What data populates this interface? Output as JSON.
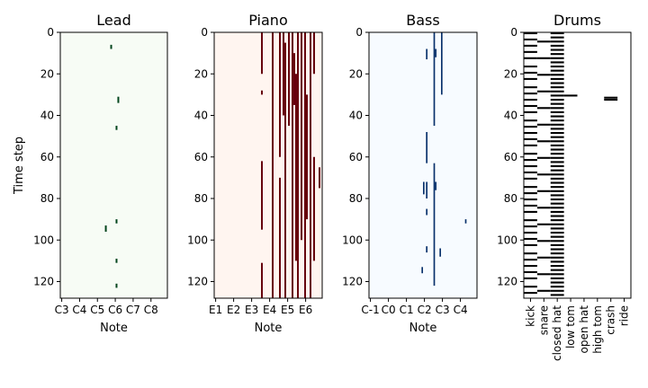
{
  "chart_data": [
    {
      "type": "heatmap",
      "title": "Lead",
      "ylabel": "Time step",
      "xlabel": "Note",
      "ylim": [
        0,
        128
      ],
      "y_ticks": [
        0,
        20,
        40,
        60,
        80,
        100,
        120
      ],
      "x_ticks": [
        "C3",
        "C4",
        "C5",
        "C6",
        "C7",
        "C8"
      ],
      "x_range": [
        48,
        108
      ],
      "background": "#f7fcf5",
      "note_color": "#00441b",
      "notes": [
        {
          "pitch": 76,
          "start": 6,
          "end": 8
        },
        {
          "pitch": 80,
          "start": 31,
          "end": 34
        },
        {
          "pitch": 79,
          "start": 45,
          "end": 47
        },
        {
          "pitch": 79,
          "start": 90,
          "end": 92
        },
        {
          "pitch": 73,
          "start": 93,
          "end": 96
        },
        {
          "pitch": 79,
          "start": 109,
          "end": 111
        },
        {
          "pitch": 79,
          "start": 121,
          "end": 123
        }
      ]
    },
    {
      "type": "heatmap",
      "title": "Piano",
      "ylabel": "",
      "xlabel": "Note",
      "ylim": [
        0,
        128
      ],
      "y_ticks": [
        0,
        20,
        40,
        60,
        80,
        100,
        120
      ],
      "x_ticks": [
        "E1",
        "E2",
        "E3",
        "E4",
        "E5",
        "E6"
      ],
      "x_range": [
        28,
        88
      ],
      "background": "#fff5f0",
      "note_color": "#67000d",
      "notes": [
        {
          "pitch": 54,
          "start": 0,
          "end": 20
        },
        {
          "pitch": 54,
          "start": 28,
          "end": 30
        },
        {
          "pitch": 54,
          "start": 62,
          "end": 95
        },
        {
          "pitch": 54,
          "start": 111,
          "end": 128
        },
        {
          "pitch": 60,
          "start": 0,
          "end": 128
        },
        {
          "pitch": 64,
          "start": 0,
          "end": 60
        },
        {
          "pitch": 64,
          "start": 70,
          "end": 128
        },
        {
          "pitch": 66,
          "start": 0,
          "end": 40
        },
        {
          "pitch": 67,
          "start": 5,
          "end": 128
        },
        {
          "pitch": 69,
          "start": 0,
          "end": 45
        },
        {
          "pitch": 71,
          "start": 0,
          "end": 128
        },
        {
          "pitch": 72,
          "start": 10,
          "end": 35
        },
        {
          "pitch": 73,
          "start": 20,
          "end": 110
        },
        {
          "pitch": 74,
          "start": 0,
          "end": 128
        },
        {
          "pitch": 76,
          "start": 0,
          "end": 100
        },
        {
          "pitch": 78,
          "start": 0,
          "end": 128
        },
        {
          "pitch": 79,
          "start": 30,
          "end": 90
        },
        {
          "pitch": 81,
          "start": 0,
          "end": 128
        },
        {
          "pitch": 83,
          "start": 0,
          "end": 20
        },
        {
          "pitch": 83,
          "start": 60,
          "end": 110
        },
        {
          "pitch": 86,
          "start": 65,
          "end": 75
        }
      ]
    },
    {
      "type": "heatmap",
      "title": "Bass",
      "ylabel": "",
      "xlabel": "Note",
      "ylim": [
        0,
        128
      ],
      "y_ticks": [
        0,
        20,
        40,
        60,
        80,
        100,
        120
      ],
      "x_ticks": [
        "C-1",
        "C0",
        "C1",
        "C2",
        "C3",
        "C4"
      ],
      "x_range": [
        0,
        72
      ],
      "background": "#f7fbff",
      "note_color": "#08306b",
      "notes": [
        {
          "pitch": 43,
          "start": 0,
          "end": 45
        },
        {
          "pitch": 38,
          "start": 8,
          "end": 13
        },
        {
          "pitch": 44,
          "start": 8,
          "end": 12
        },
        {
          "pitch": 48,
          "start": 0,
          "end": 30
        },
        {
          "pitch": 38,
          "start": 48,
          "end": 63
        },
        {
          "pitch": 43,
          "start": 63,
          "end": 122
        },
        {
          "pitch": 36,
          "start": 72,
          "end": 78
        },
        {
          "pitch": 38,
          "start": 72,
          "end": 80
        },
        {
          "pitch": 44,
          "start": 72,
          "end": 76
        },
        {
          "pitch": 38,
          "start": 85,
          "end": 88
        },
        {
          "pitch": 64,
          "start": 90,
          "end": 92
        },
        {
          "pitch": 47,
          "start": 104,
          "end": 108
        },
        {
          "pitch": 38,
          "start": 103,
          "end": 106
        },
        {
          "pitch": 35,
          "start": 113,
          "end": 116
        }
      ]
    },
    {
      "type": "heatmap",
      "title": "Drums",
      "ylabel": "",
      "xlabel": "",
      "ylim": [
        0,
        128
      ],
      "y_ticks": [
        0,
        20,
        40,
        60,
        80,
        100,
        120
      ],
      "x_ticks": [
        "kick",
        "snare",
        "closed hat",
        "low tom",
        "open hat",
        "high tom",
        "crash",
        "ride"
      ],
      "background": "#ffffff",
      "note_color": "#000000",
      "kick_steps": [
        0,
        3,
        6,
        9,
        12,
        16,
        19,
        22,
        26,
        29,
        32,
        35,
        38,
        42,
        45,
        48,
        51,
        54,
        58,
        61,
        64,
        67,
        70,
        74,
        77,
        80,
        83,
        86,
        90,
        93,
        96,
        99,
        102,
        106,
        109,
        112,
        115,
        118,
        122,
        125
      ],
      "snare_steps": [
        4,
        12,
        20,
        28,
        36,
        44,
        52,
        60,
        68,
        76,
        84,
        92,
        100,
        108,
        116,
        124
      ],
      "closed_hat_steps": "every 2 steps, 0-126",
      "low_tom_steps": [
        30
      ],
      "crash_steps": [
        31,
        32
      ]
    }
  ]
}
